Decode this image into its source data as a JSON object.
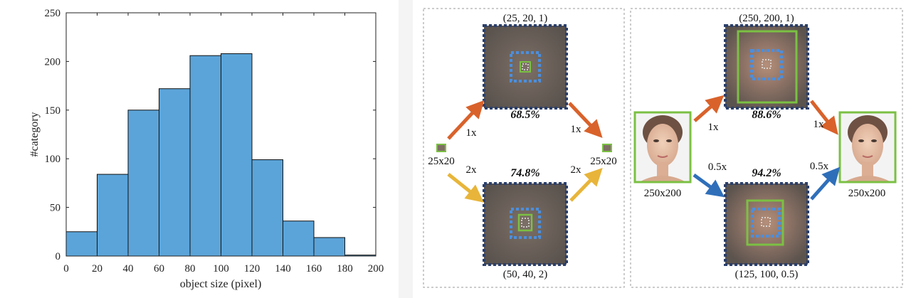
{
  "chart_data": {
    "type": "bar",
    "xlabel": "object size (pixel)",
    "ylabel": "#category",
    "xlim": [
      0,
      200
    ],
    "ylim": [
      0,
      250
    ],
    "xticks": [
      0,
      20,
      40,
      60,
      80,
      100,
      120,
      140,
      160,
      180,
      200
    ],
    "yticks": [
      0,
      50,
      100,
      150,
      200,
      250
    ],
    "bin_edges": [
      0,
      20,
      40,
      60,
      80,
      100,
      120,
      140,
      160,
      180,
      200
    ],
    "values": [
      25,
      84,
      150,
      172,
      206,
      208,
      99,
      36,
      19,
      1
    ],
    "bar_color": "#5ba4d9",
    "grid": false
  },
  "diagram": {
    "left_panel": {
      "top_coord": "(25, 20, 1)",
      "top_score": "68.5%",
      "bottom_coord": "(50, 40, 2)",
      "bottom_score": "74.8%",
      "input_label": "25x20",
      "output_label": "25x20",
      "up_in_scale": "1x",
      "up_out_scale": "1x",
      "down_in_scale": "2x",
      "down_out_scale": "2x"
    },
    "right_panel": {
      "top_coord": "(250, 200, 1)",
      "top_score": "88.6%",
      "bottom_coord": "(125, 100, 0.5)",
      "bottom_score": "94.2%",
      "input_label": "250x200",
      "output_label": "250x200",
      "up_in_scale": "1x",
      "up_out_scale": "1x",
      "down_in_scale": "0.5x",
      "down_out_scale": "0.5x"
    },
    "colors": {
      "arrow_orange": "#d9622b",
      "arrow_yellow": "#e8b53a",
      "arrow_blue": "#2f6fba",
      "box_green": "#7bc043",
      "box_blue_dotted": "#4a8fe0",
      "frame_dark_dotted": "#2a3f6b"
    }
  }
}
